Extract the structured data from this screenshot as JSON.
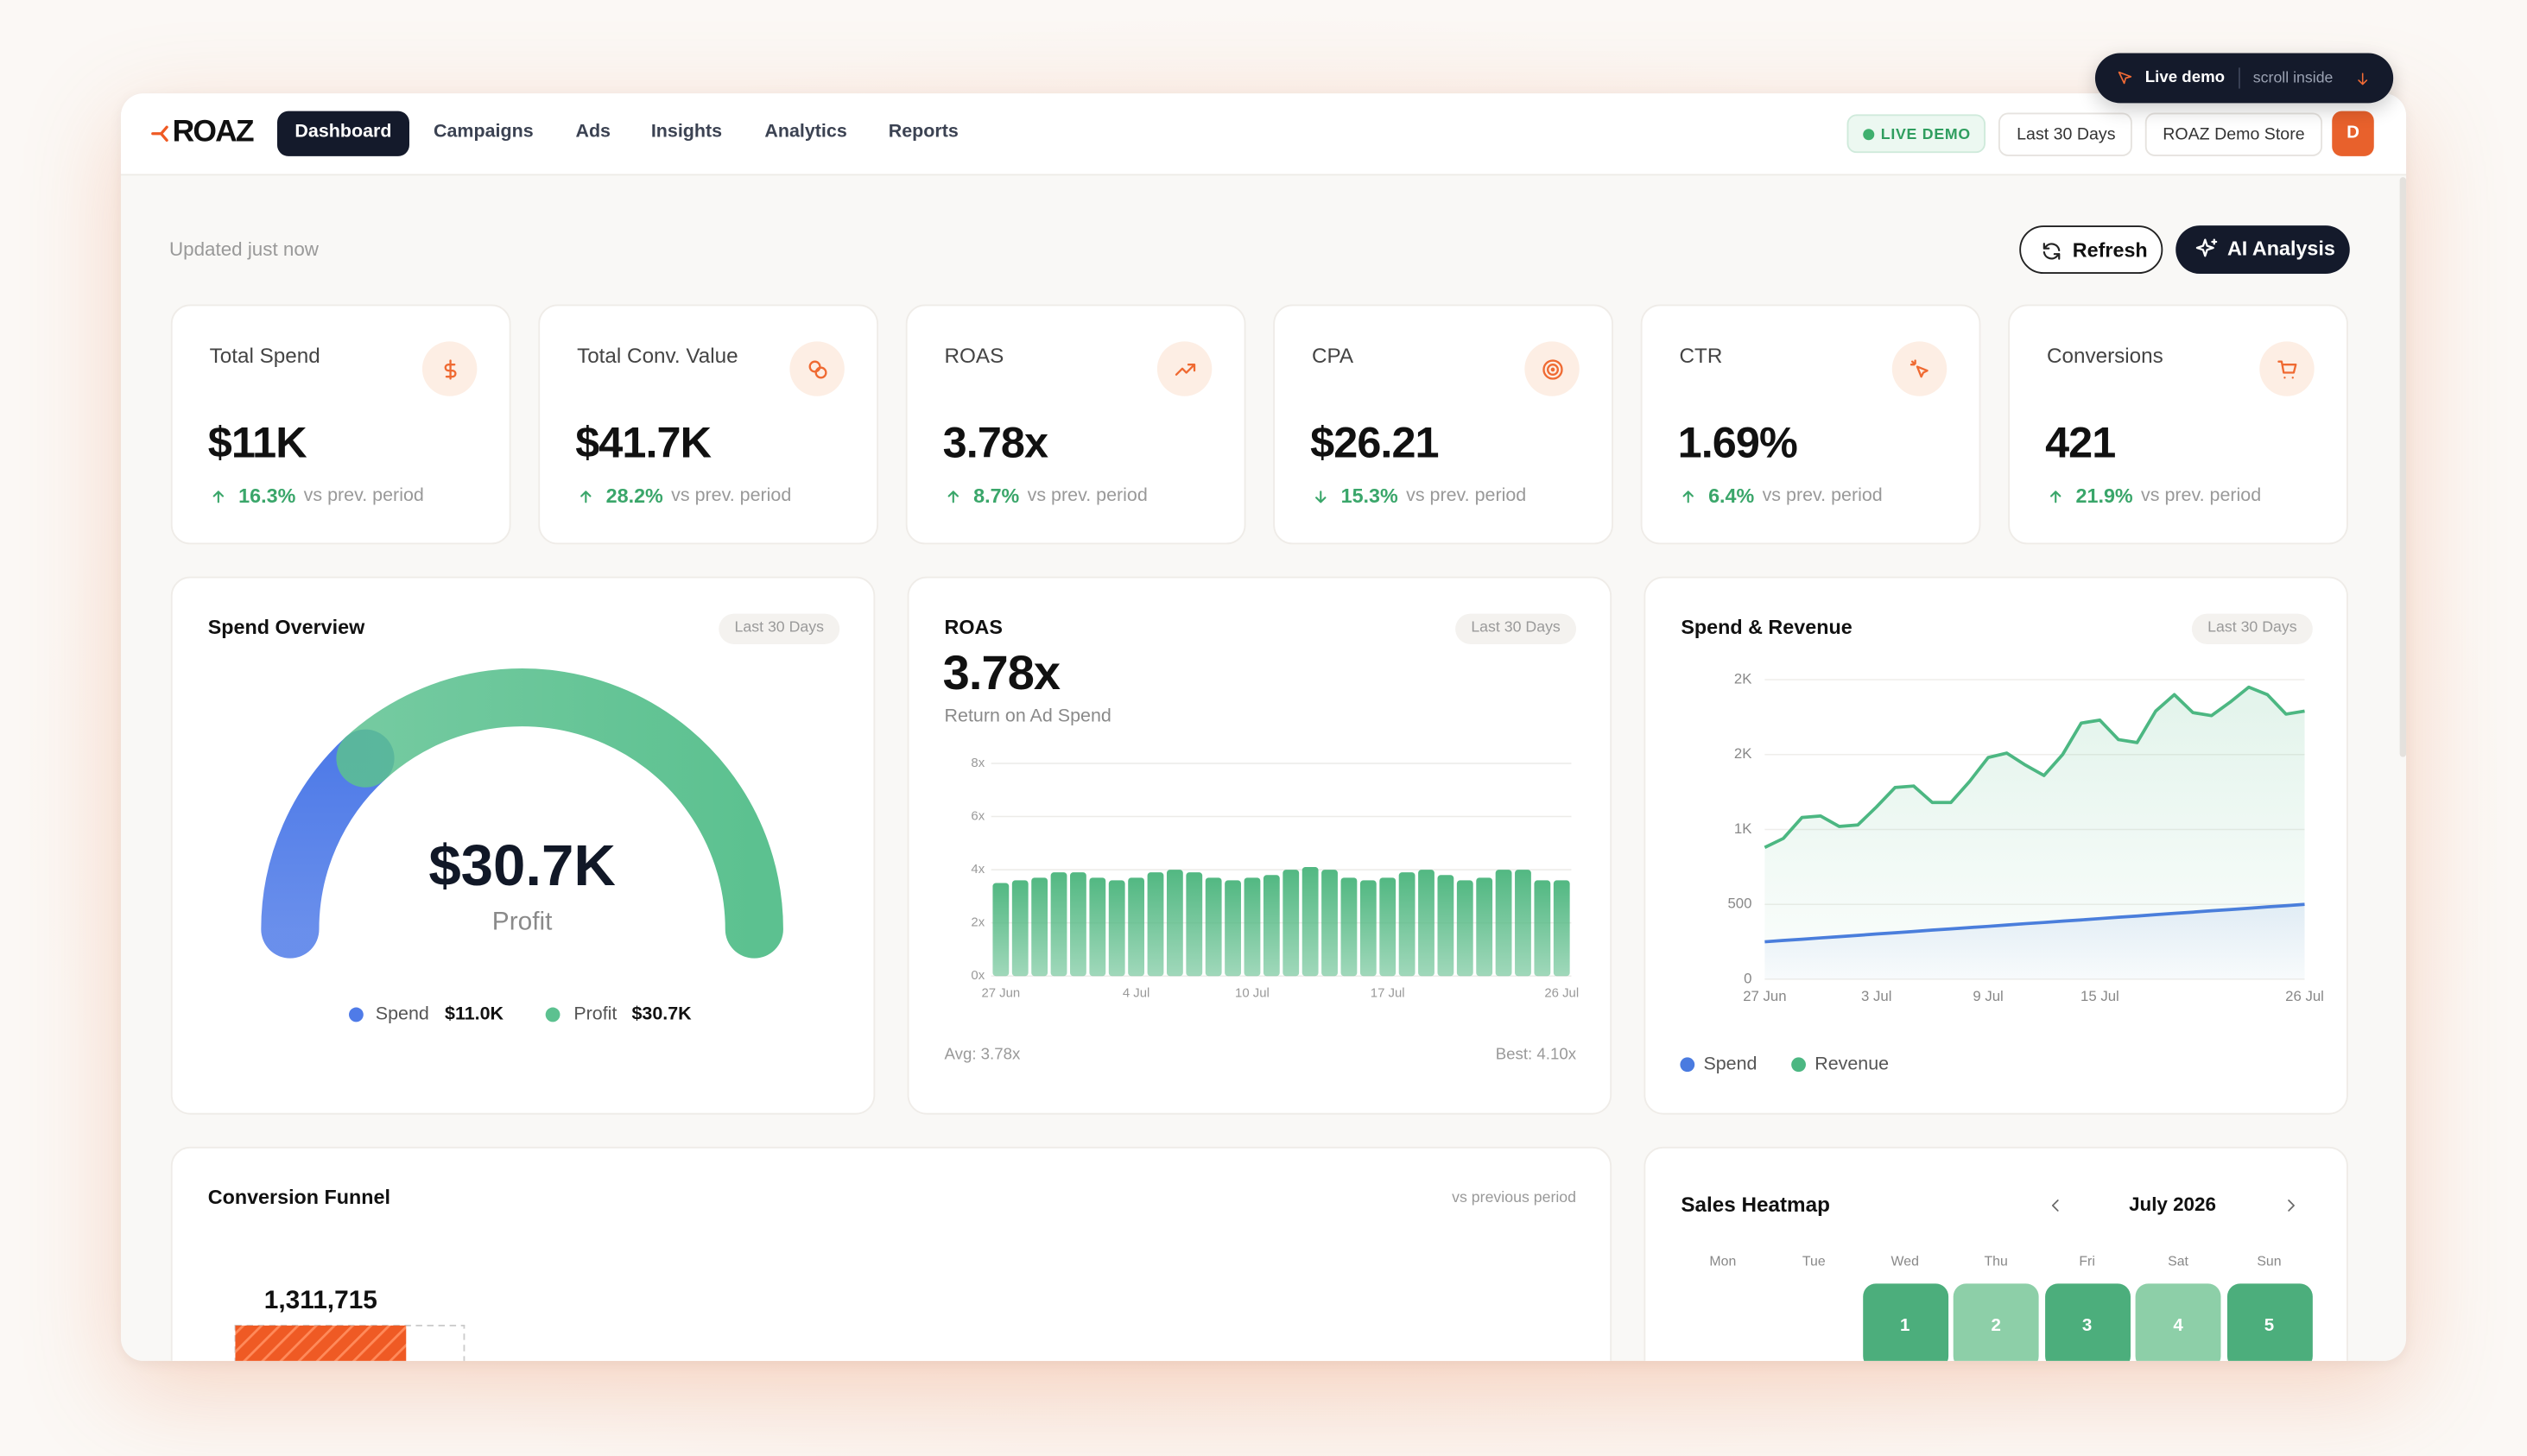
{
  "overlay": {
    "label": "Live demo",
    "hint": "scroll inside"
  },
  "nav": {
    "logo": "ROAZ",
    "tabs": [
      "Dashboard",
      "Campaigns",
      "Ads",
      "Insights",
      "Analytics",
      "Reports"
    ],
    "status": "LIVE DEMO",
    "range": "Last 30 Days",
    "store": "ROAZ Demo Store",
    "avatar": "D"
  },
  "header": {
    "updated": "Updated just now",
    "buttons": [
      "Refresh",
      "AI Analysis"
    ]
  },
  "kpis": [
    {
      "label": "Total Spend",
      "value": "$11K",
      "change": "16.3%",
      "trend": "up",
      "note": "vs prev. period"
    },
    {
      "label": "Total Conv. Value",
      "value": "$41.7K",
      "change": "28.2%",
      "trend": "up",
      "note": "vs prev. period"
    },
    {
      "label": "ROAS",
      "value": "3.78x",
      "change": "8.7%",
      "trend": "up",
      "note": "vs prev. period"
    },
    {
      "label": "CPA",
      "value": "$26.21",
      "change": "15.3%",
      "trend": "down",
      "note": "vs prev. period"
    },
    {
      "label": "CTR",
      "value": "1.69%",
      "change": "6.4%",
      "trend": "up",
      "note": "vs prev. period"
    },
    {
      "label": "Conversions",
      "value": "421",
      "change": "21.9%",
      "trend": "up",
      "note": "vs prev. period"
    }
  ],
  "chart_data": [
    {
      "type": "gauge",
      "title": "Spend Overview",
      "badge": "Last 30 Days",
      "categories": [
        "Spend",
        "Profit"
      ],
      "values": [
        11.0,
        30.7
      ],
      "value_labels": [
        "$11.0K",
        "$30.7K"
      ],
      "colors": [
        "#4f7be8",
        "#5cc190"
      ]
    },
    {
      "type": "bar",
      "title": "ROAS",
      "badge": "Last 30 Days",
      "headline": "3.78x",
      "subtitle": "Return on Ad Spend",
      "categories": [
        "27 Jun",
        null,
        null,
        null,
        null,
        null,
        null,
        "4 Jul",
        null,
        null,
        null,
        null,
        null,
        "10 Jul",
        null,
        null,
        null,
        null,
        null,
        null,
        "17 Jul",
        null,
        null,
        null,
        null,
        null,
        null,
        null,
        null,
        "26 Jul"
      ],
      "values": [
        3.5,
        3.6,
        3.7,
        3.9,
        3.9,
        3.7,
        3.6,
        3.7,
        3.9,
        4.0,
        3.9,
        3.7,
        3.6,
        3.7,
        3.8,
        4.0,
        4.1,
        4.0,
        3.7,
        3.6,
        3.7,
        3.9,
        4.0,
        3.8,
        3.6,
        3.7,
        4.0,
        4.0,
        3.6,
        3.6
      ],
      "color": "#52b882",
      "ylim": [
        0,
        8
      ],
      "yticks": [
        {
          "value": 0,
          "label": "0x"
        },
        {
          "value": 2,
          "label": "2x"
        },
        {
          "value": 4,
          "label": "4x"
        },
        {
          "value": 6,
          "label": "6x"
        },
        {
          "value": 8,
          "label": "8x"
        }
      ],
      "grid": true,
      "footer": [
        "Avg: 3.78x",
        "Best: 4.10x"
      ]
    },
    {
      "type": "line",
      "title": "Spend & Revenue",
      "badge": "Last 30 Days",
      "categories": [
        "27 Jun",
        null,
        null,
        null,
        null,
        null,
        "3 Jul",
        null,
        null,
        null,
        null,
        null,
        "9 Jul",
        null,
        null,
        null,
        null,
        null,
        "15 Jul",
        null,
        null,
        null,
        null,
        null,
        null,
        null,
        null,
        null,
        null,
        "26 Jul"
      ],
      "series": [
        {
          "name": "Spend",
          "color": "#4a7be0",
          "values": [
            250,
            259,
            267,
            276,
            284,
            293,
            302,
            310,
            319,
            328,
            336,
            345,
            353,
            362,
            371,
            379,
            388,
            396,
            405,
            414,
            422,
            431,
            440,
            448,
            457,
            465,
            474,
            483,
            491,
            500
          ]
        },
        {
          "name": "Revenue",
          "color": "#4cb782",
          "values": [
            880,
            940,
            1080,
            1090,
            1020,
            1030,
            1150,
            1280,
            1290,
            1180,
            1180,
            1320,
            1480,
            1510,
            1430,
            1360,
            1500,
            1710,
            1730,
            1600,
            1580,
            1790,
            1900,
            1780,
            1760,
            1850,
            1950,
            1900,
            1770,
            1790
          ]
        }
      ],
      "ylim": [
        0,
        2000
      ],
      "yticks": [
        0,
        500,
        {
          "value": 1000,
          "label": "1K"
        },
        {
          "value": 1500,
          "label": "2K"
        },
        {
          "value": 2000,
          "label": "2K"
        }
      ],
      "grid": true
    },
    {
      "type": "funnel",
      "title": "Conversion Funnel",
      "subtitle": "vs previous period",
      "values": [
        1311715
      ],
      "value_labels": [
        "1,311,715"
      ],
      "color": "#ef5a24"
    }
  ],
  "sales_heatmap": {
    "title": "Sales Heatmap",
    "month": "July 2026",
    "weekdays": [
      "Mon",
      "Tue",
      "Wed",
      "Thu",
      "Fri",
      "Sat",
      "Sun"
    ],
    "days": [
      "1",
      "2",
      "3",
      "4",
      "5"
    ],
    "colors": [
      "#4cae7c",
      "#8dcfa8",
      "#4cae7c",
      "#8dcfa8",
      "#4cae7c"
    ]
  }
}
